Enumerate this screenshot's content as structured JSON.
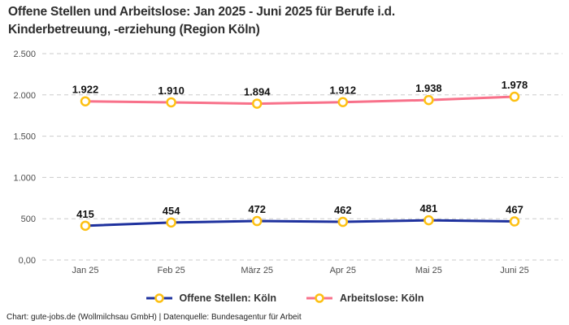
{
  "header": {
    "title_line1": "Offene Stellen und Arbeitslose: Jan 2025 - Juni 2025 für Berufe i.d.",
    "title_line2": "Kinderbetreuung, -erziehung (Region Köln)"
  },
  "footer": {
    "text": "Chart: gute-jobs.de (Wollmilchsau GmbH) | Datenquelle: Bundesagentur für Arbeit"
  },
  "colors": {
    "grid": "#cbcbcb",
    "axis_label": "#4d4d4d",
    "data_label": "#111111",
    "title_text": "#2e2e2e",
    "legend_text": "#333333"
  },
  "chart_data": {
    "type": "line",
    "title": "Offene Stellen und Arbeitslose: Jan 2025 - Juni 2025 für Berufe i.d. Kinderbetreuung, -erziehung (Region Köln)",
    "categories": [
      "Jan 25",
      "Feb 25",
      "März 25",
      "Apr 25",
      "Mai 25",
      "Juni 25"
    ],
    "series": [
      {
        "name": "Offene Stellen: Köln",
        "color": "#1e319e",
        "values": [
          415,
          454,
          472,
          462,
          481,
          467
        ],
        "labels": [
          "415",
          "454",
          "472",
          "462",
          "481",
          "467"
        ]
      },
      {
        "name": "Arbeitslose: Köln",
        "color": "#f8718a",
        "values": [
          1922,
          1910,
          1894,
          1912,
          1938,
          1978
        ],
        "labels": [
          "1.922",
          "1.910",
          "1.894",
          "1.912",
          "1.938",
          "1.978"
        ]
      }
    ],
    "marker": {
      "fill": "#ffffff",
      "stroke": "#fdc013"
    },
    "y_ticks": [
      {
        "value": 0,
        "label": "0,00"
      },
      {
        "value": 500,
        "label": "500"
      },
      {
        "value": 1000,
        "label": "1.000"
      },
      {
        "value": 1500,
        "label": "1.500"
      },
      {
        "value": 2000,
        "label": "2.000"
      },
      {
        "value": 2500,
        "label": "2.500"
      }
    ],
    "ylim": [
      0,
      2500
    ],
    "grid": "horizontal-dashed",
    "legend_position": "bottom",
    "xlabel": "",
    "ylabel": ""
  }
}
